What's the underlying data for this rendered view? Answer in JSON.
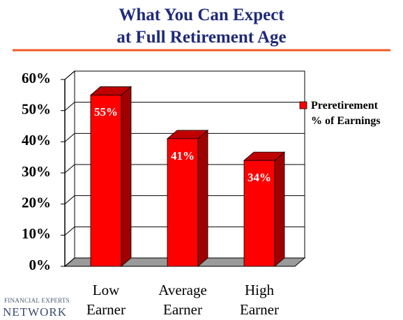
{
  "chart_data": {
    "type": "bar3d",
    "title": "What You Can Expect\nat Full Retirement Age",
    "categories": [
      "Low\nEarner",
      "Average\nEarner",
      "High\nEarner"
    ],
    "series": [
      {
        "name": "Preretirement\n% of Earnings",
        "color": "#ff0000",
        "values": [
          55,
          41,
          34
        ],
        "value_labels": [
          "55%",
          "41%",
          "34%"
        ]
      }
    ],
    "ylim": [
      0,
      60
    ],
    "yticks": [
      {
        "value": 0,
        "label": "0%"
      },
      {
        "value": 10,
        "label": "10%"
      },
      {
        "value": 20,
        "label": "20%"
      },
      {
        "value": 30,
        "label": "30%"
      },
      {
        "value": 40,
        "label": "40%"
      },
      {
        "value": 50,
        "label": "50%"
      },
      {
        "value": 60,
        "label": "60%"
      }
    ],
    "grid": true,
    "legend": "right"
  },
  "logo": {
    "line1": "FINANCIAL EXPERTS",
    "line2": "NETWORK"
  }
}
